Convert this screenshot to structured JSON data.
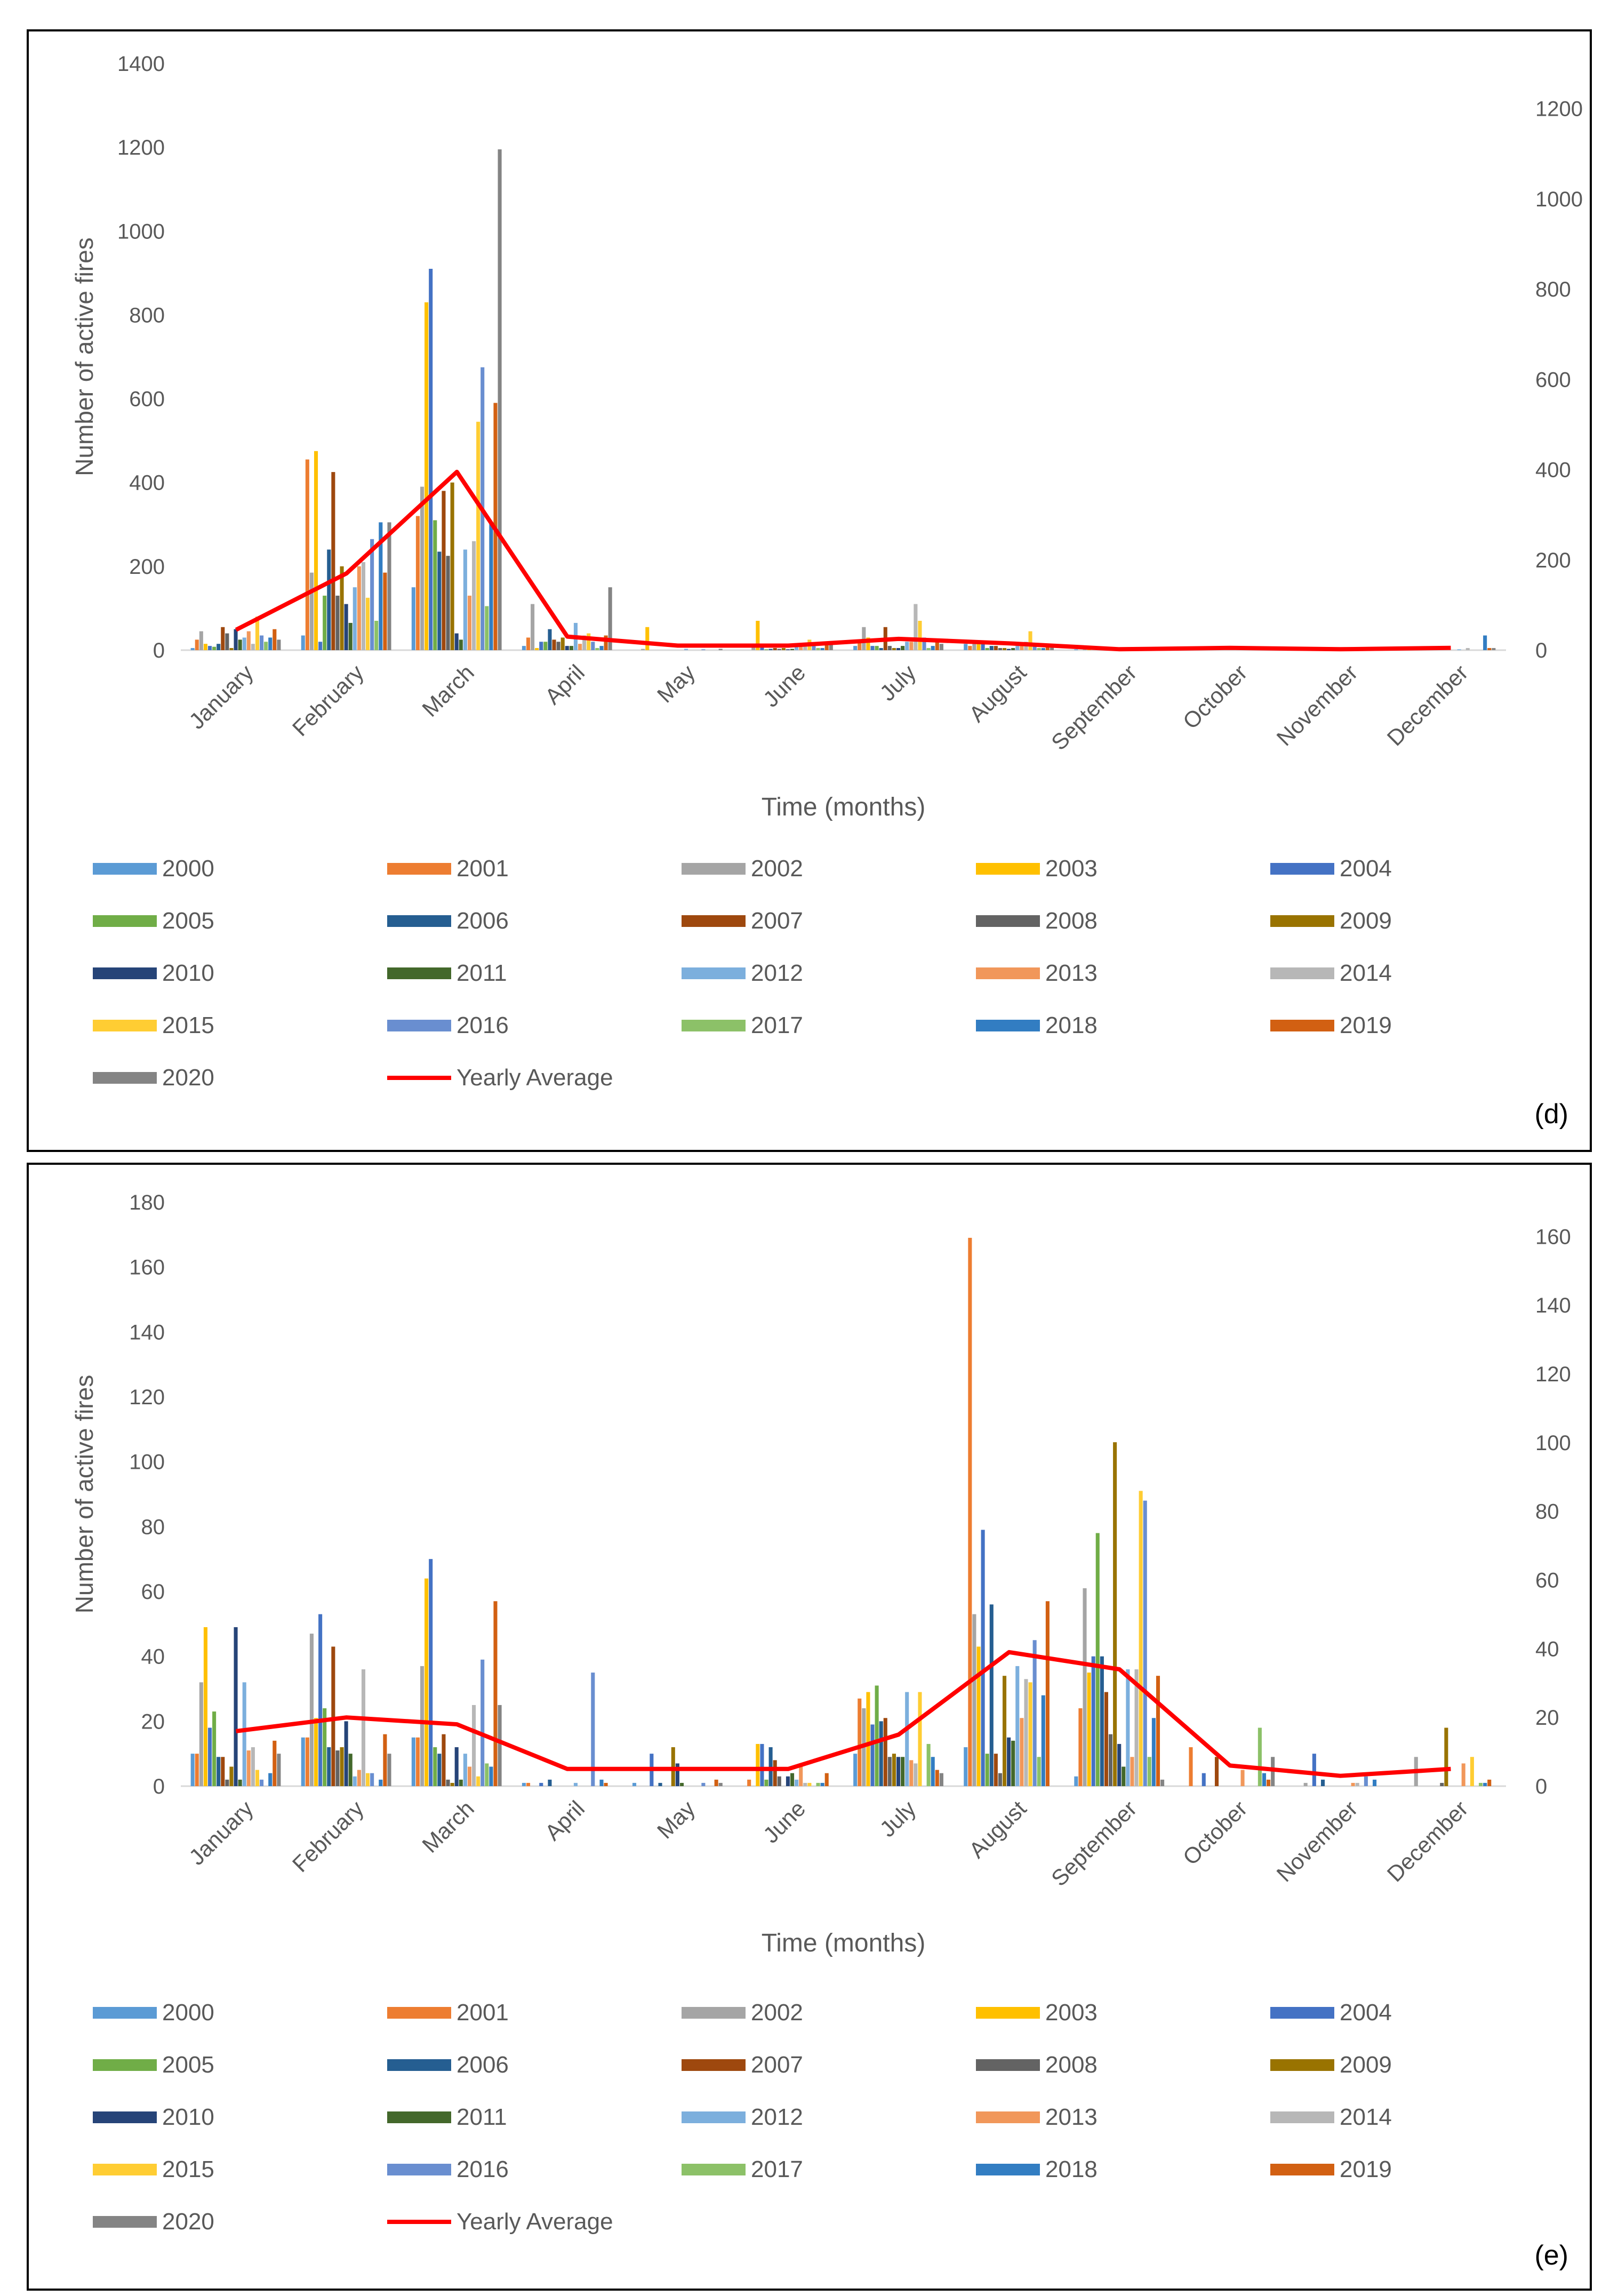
{
  "series_names": [
    "2000",
    "2001",
    "2002",
    "2003",
    "2004",
    "2005",
    "2006",
    "2007",
    "2008",
    "2009",
    "2010",
    "2011",
    "2012",
    "2013",
    "2014",
    "2015",
    "2016",
    "2017",
    "2018",
    "2019",
    "2020"
  ],
  "series_colors": [
    "#5B9BD5",
    "#ED7D31",
    "#A5A5A5",
    "#FFC000",
    "#4472C4",
    "#70AD47",
    "#255E91",
    "#9E480E",
    "#636363",
    "#997300",
    "#264478",
    "#43682B",
    "#7CAFDD",
    "#F1975A",
    "#B7B7B7",
    "#FFCD33",
    "#698ED0",
    "#8CC168",
    "#327DC2",
    "#D26012",
    "#848484"
  ],
  "average_color": "#FF0000",
  "average_label": "Yearly Average",
  "chart_data": [
    {
      "type": "bar",
      "panel_label": "(d)",
      "ylabel": "Number of active fires",
      "xlabel": "Time (months)",
      "categories": [
        "January",
        "February",
        "March",
        "April",
        "May",
        "June",
        "July",
        "August",
        "September",
        "October",
        "November",
        "December"
      ],
      "ylim": [
        0,
        1400
      ],
      "yticks": [
        0,
        200,
        400,
        600,
        800,
        1000,
        1200,
        1400
      ],
      "y2lim": [
        0,
        1300
      ],
      "y2ticks": [
        0,
        200,
        400,
        600,
        800,
        1000,
        1200
      ],
      "series_values": [
        [
          5,
          35,
          150,
          10,
          0,
          0,
          10,
          15,
          2,
          0,
          0,
          2
        ],
        [
          25,
          455,
          320,
          30,
          0,
          0,
          20,
          10,
          0,
          0,
          0,
          0
        ],
        [
          45,
          185,
          390,
          110,
          3,
          15,
          55,
          20,
          3,
          3,
          2,
          5
        ],
        [
          15,
          475,
          830,
          5,
          55,
          70,
          30,
          15,
          2,
          0,
          0,
          2
        ],
        [
          10,
          20,
          910,
          20,
          0,
          10,
          10,
          15,
          0,
          2,
          0,
          0
        ],
        [
          8,
          130,
          310,
          20,
          0,
          2,
          10,
          5,
          0,
          0,
          0,
          0
        ],
        [
          15,
          240,
          235,
          50,
          0,
          3,
          5,
          10,
          0,
          0,
          0,
          0
        ],
        [
          55,
          425,
          380,
          25,
          0,
          5,
          55,
          10,
          0,
          0,
          0,
          0
        ],
        [
          40,
          130,
          225,
          20,
          0,
          3,
          10,
          5,
          0,
          0,
          0,
          0
        ],
        [
          5,
          200,
          400,
          30,
          0,
          5,
          5,
          5,
          0,
          0,
          0,
          0
        ],
        [
          50,
          110,
          40,
          10,
          0,
          2,
          5,
          3,
          0,
          0,
          0,
          0
        ],
        [
          25,
          65,
          25,
          10,
          0,
          3,
          10,
          5,
          0,
          0,
          0,
          0
        ],
        [
          30,
          150,
          240,
          65,
          3,
          10,
          20,
          10,
          0,
          0,
          0,
          2
        ],
        [
          45,
          200,
          130,
          15,
          0,
          10,
          20,
          15,
          0,
          0,
          0,
          0
        ],
        [
          15,
          210,
          260,
          35,
          0,
          15,
          110,
          20,
          0,
          0,
          0,
          5
        ],
        [
          80,
          125,
          545,
          40,
          0,
          25,
          70,
          45,
          0,
          0,
          0,
          0
        ],
        [
          35,
          265,
          675,
          20,
          2,
          10,
          30,
          15,
          0,
          0,
          0,
          0
        ],
        [
          20,
          70,
          105,
          5,
          0,
          5,
          5,
          5,
          0,
          0,
          0,
          0
        ],
        [
          30,
          305,
          305,
          10,
          0,
          5,
          10,
          5,
          0,
          0,
          0,
          35
        ],
        [
          50,
          185,
          590,
          35,
          0,
          20,
          20,
          10,
          0,
          0,
          0,
          5
        ],
        [
          25,
          305,
          1195,
          150,
          3,
          20,
          15,
          10,
          0,
          0,
          0,
          5
        ]
      ],
      "average": [
        45,
        170,
        395,
        30,
        10,
        10,
        25,
        15,
        2,
        5,
        2,
        5
      ]
    },
    {
      "type": "bar",
      "panel_label": "(e)",
      "ylabel": "Number of active fires",
      "xlabel": "Time (months)",
      "categories": [
        "January",
        "February",
        "March",
        "April",
        "May",
        "June",
        "July",
        "August",
        "September",
        "October",
        "November",
        "December"
      ],
      "ylim": [
        0,
        180
      ],
      "yticks": [
        0,
        20,
        40,
        60,
        80,
        100,
        120,
        140,
        160,
        180
      ],
      "y2lim": [
        0,
        170
      ],
      "y2ticks": [
        0,
        20,
        40,
        60,
        80,
        100,
        120,
        140,
        160
      ],
      "series_values": [
        [
          10,
          15,
          15,
          1,
          1,
          0,
          10,
          12,
          3,
          0,
          0,
          0
        ],
        [
          10,
          15,
          15,
          1,
          0,
          2,
          27,
          169,
          24,
          12,
          0,
          0
        ],
        [
          32,
          47,
          37,
          0,
          0,
          0,
          24,
          53,
          61,
          0,
          1,
          9
        ],
        [
          49,
          21,
          64,
          0,
          0,
          13,
          29,
          43,
          35,
          0,
          0,
          0
        ],
        [
          18,
          53,
          70,
          1,
          10,
          13,
          19,
          79,
          40,
          4,
          10,
          0
        ],
        [
          23,
          24,
          12,
          0,
          0,
          2,
          31,
          10,
          78,
          0,
          0,
          0
        ],
        [
          9,
          12,
          10,
          2,
          1,
          12,
          20,
          56,
          40,
          0,
          2,
          0
        ],
        [
          9,
          43,
          16,
          0,
          0,
          8,
          21,
          10,
          29,
          9,
          0,
          0
        ],
        [
          2,
          11,
          2,
          0,
          0,
          3,
          9,
          4,
          16,
          0,
          0,
          1
        ],
        [
          6,
          12,
          1,
          0,
          12,
          0,
          10,
          34,
          106,
          0,
          0,
          18
        ],
        [
          49,
          20,
          12,
          0,
          7,
          3,
          9,
          15,
          13,
          0,
          0,
          0
        ],
        [
          2,
          10,
          2,
          0,
          1,
          4,
          9,
          14,
          6,
          0,
          0,
          0
        ],
        [
          32,
          3,
          10,
          1,
          0,
          2,
          29,
          37,
          36,
          0,
          0,
          0
        ],
        [
          11,
          5,
          6,
          0,
          0,
          6,
          8,
          21,
          9,
          5,
          1,
          7
        ],
        [
          12,
          36,
          25,
          0,
          0,
          1,
          7,
          33,
          36,
          0,
          1,
          0
        ],
        [
          5,
          4,
          3,
          0,
          0,
          1,
          29,
          32,
          91,
          0,
          0,
          9
        ],
        [
          2,
          4,
          39,
          35,
          1,
          0,
          0,
          45,
          88,
          0,
          3,
          0
        ],
        [
          0,
          0,
          7,
          0,
          0,
          1,
          13,
          9,
          9,
          18,
          0,
          1
        ],
        [
          4,
          2,
          6,
          2,
          0,
          1,
          9,
          28,
          21,
          4,
          2,
          1
        ],
        [
          14,
          16,
          57,
          1,
          2,
          4,
          5,
          57,
          34,
          2,
          0,
          2
        ],
        [
          10,
          10,
          25,
          0,
          1,
          0,
          4,
          0,
          2,
          9,
          0,
          0
        ]
      ],
      "average": [
        16,
        20,
        18,
        5,
        5,
        5,
        15,
        39,
        34,
        6,
        3,
        5
      ]
    }
  ]
}
